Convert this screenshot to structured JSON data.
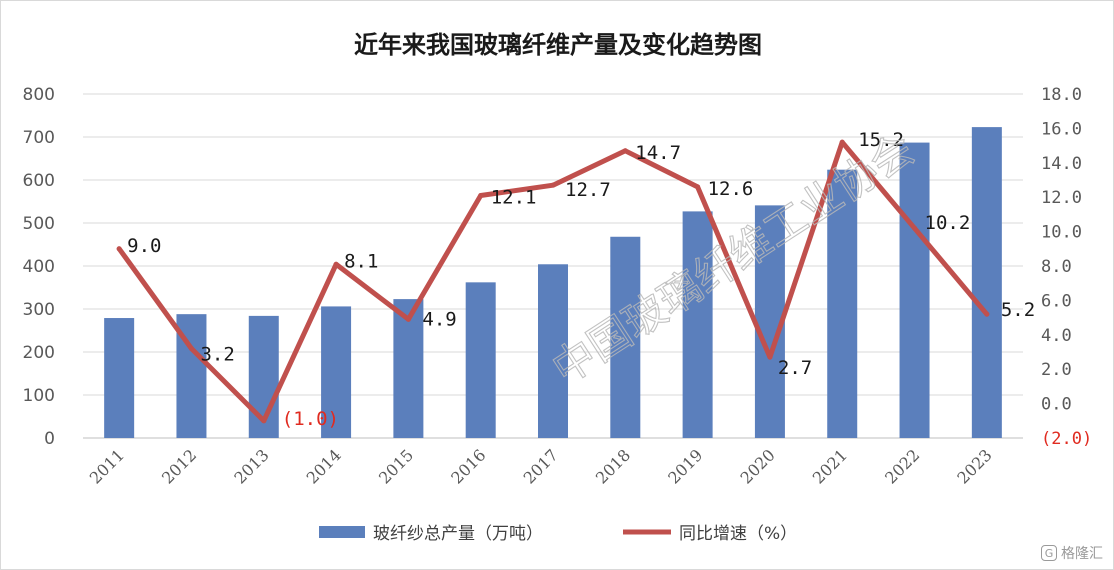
{
  "chart_data": {
    "type": "bar+line",
    "title": "近年来我国玻璃纤维产量及变化趋势图",
    "categories": [
      "2011",
      "2012",
      "2013",
      "2014",
      "2015",
      "2016",
      "2017",
      "2018",
      "2019",
      "2020",
      "2021",
      "2022",
      "2023"
    ],
    "series": [
      {
        "name": "玻纤纱总产量（万吨）",
        "type": "bar",
        "axis": "left",
        "color": "#5b7fbc",
        "values": [
          279,
          288,
          284,
          306,
          323,
          362,
          404,
          468,
          527,
          541,
          624,
          687,
          723
        ]
      },
      {
        "name": "同比增速（%）",
        "type": "line",
        "axis": "right",
        "color": "#c0504d",
        "values": [
          9.0,
          3.2,
          -1.0,
          8.1,
          4.9,
          12.1,
          12.7,
          14.7,
          12.6,
          2.7,
          15.2,
          10.2,
          5.2
        ],
        "labels": [
          "9.0",
          "3.2",
          "(1.0)",
          "8.1",
          "4.9",
          "12.1",
          "12.7",
          "14.7",
          "12.6",
          "2.7",
          "15.2",
          "10.2",
          "5.2"
        ]
      }
    ],
    "y_left": {
      "lim": [
        0,
        800
      ],
      "ticks": [
        "0",
        "100",
        "200",
        "300",
        "400",
        "500",
        "600",
        "700",
        "800"
      ]
    },
    "y_right": {
      "lim": [
        -2,
        18
      ],
      "ticks": [
        "(2.0)",
        "0.0",
        "2.0",
        "4.0",
        "6.0",
        "8.0",
        "10.0",
        "12.0",
        "14.0",
        "16.0",
        "18.0"
      ],
      "negative_color": "#e02b20"
    },
    "grid": true,
    "legend_position": "bottom"
  },
  "watermark": "中国玻璃纤维工业协会",
  "brand": "格隆汇",
  "brand_logo_glyph": "G"
}
